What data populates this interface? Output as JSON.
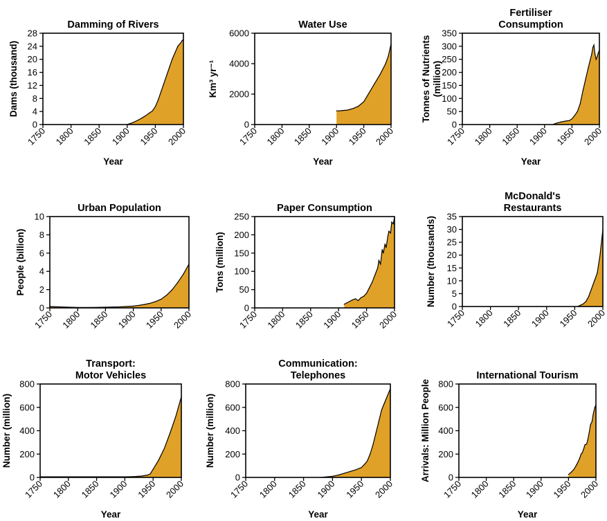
{
  "colors": {
    "fill": "#e0a128",
    "line": "#000000",
    "background": "#ffffff"
  },
  "chart_data": [
    {
      "type": "area",
      "title": [
        "Damming of Rivers"
      ],
      "xlabel": "Year",
      "ylabel": [
        "Dams (thousand)"
      ],
      "xlim": [
        1750,
        2000
      ],
      "ylim": [
        0,
        28
      ],
      "xticks": [
        "1750",
        "1800",
        "1850",
        "1900",
        "1950",
        "2000"
      ],
      "yticks": [
        "0",
        "4",
        "8",
        "12",
        "16",
        "20",
        "24",
        "28"
      ],
      "grid": false,
      "x": [
        1900,
        1910,
        1920,
        1930,
        1940,
        1945,
        1950,
        1955,
        1960,
        1965,
        1970,
        1975,
        1980,
        1985,
        1990,
        1995,
        1998,
        2000
      ],
      "values": [
        0,
        0.6,
        1.4,
        2.4,
        3.6,
        4.2,
        5.5,
        7.5,
        10,
        12.5,
        15,
        17.5,
        20,
        22,
        24,
        25,
        25.8,
        26
      ]
    },
    {
      "type": "area",
      "title": [
        "Water Use"
      ],
      "xlabel": "Year",
      "ylabel": [
        "Km³ yr⁻¹"
      ],
      "xlim": [
        1750,
        2000
      ],
      "ylim": [
        0,
        6000
      ],
      "xticks": [
        "1750",
        "1800",
        "1850",
        "1900",
        "1950",
        "2000"
      ],
      "yticks": [
        "0",
        "2000",
        "4000",
        "6000"
      ],
      "grid": false,
      "x": [
        1900,
        1905,
        1910,
        1920,
        1930,
        1940,
        1950,
        1960,
        1970,
        1980,
        1990,
        1995,
        2000
      ],
      "values": [
        900,
        900,
        920,
        950,
        1050,
        1200,
        1500,
        2100,
        2700,
        3300,
        4000,
        4500,
        5300
      ]
    },
    {
      "type": "area",
      "title": [
        "Fertiliser",
        "Consumption"
      ],
      "xlabel": "Year",
      "ylabel": [
        "Tonnes of Nutrients",
        "(million)"
      ],
      "xlim": [
        1750,
        2000
      ],
      "ylim": [
        0,
        350
      ],
      "xticks": [
        "1750",
        "1800",
        "1850",
        "1900",
        "1950",
        "2000"
      ],
      "yticks": [
        "0",
        "50",
        "100",
        "150",
        "200",
        "250",
        "300",
        "350"
      ],
      "grid": false,
      "x": [
        1915,
        1920,
        1925,
        1930,
        1935,
        1940,
        1945,
        1950,
        1955,
        1960,
        1965,
        1970,
        1975,
        1980,
        1983,
        1986,
        1988,
        1990,
        1992,
        1994,
        1996,
        1998,
        2000
      ],
      "values": [
        0,
        4,
        7,
        10,
        12,
        14,
        15,
        22,
        35,
        50,
        80,
        130,
        175,
        220,
        245,
        270,
        295,
        305,
        270,
        250,
        260,
        275,
        285
      ]
    },
    {
      "type": "area",
      "title": [
        "Urban Population"
      ],
      "xlabel": "",
      "ylabel": [
        "People (billion)"
      ],
      "xlim": [
        1750,
        2000
      ],
      "ylim": [
        0,
        10
      ],
      "xticks": [
        "1750",
        "1800",
        "1850",
        "1900",
        "1950",
        "2000"
      ],
      "yticks": [
        "0",
        "2",
        "4",
        "6",
        "8",
        "10"
      ],
      "grid": false,
      "x": [
        1750,
        1775,
        1800,
        1825,
        1850,
        1875,
        1900,
        1910,
        1920,
        1930,
        1940,
        1950,
        1960,
        1970,
        1980,
        1990,
        2000
      ],
      "values": [
        0.15,
        0.1,
        0.05,
        0.05,
        0.08,
        0.12,
        0.2,
        0.28,
        0.38,
        0.5,
        0.7,
        0.95,
        1.4,
        2.0,
        2.8,
        3.7,
        4.8
      ]
    },
    {
      "type": "area",
      "title": [
        "Paper Consumption"
      ],
      "xlabel": "",
      "ylabel": [
        "Tons (million)"
      ],
      "xlim": [
        1750,
        2000
      ],
      "ylim": [
        0,
        250
      ],
      "xticks": [
        "1750",
        "1800",
        "1850",
        "1900",
        "1950",
        "2000"
      ],
      "yticks": [
        "0",
        "50",
        "100",
        "150",
        "200",
        "250"
      ],
      "grid": false,
      "x": [
        1910,
        1915,
        1920,
        1925,
        1930,
        1935,
        1940,
        1945,
        1950,
        1955,
        1960,
        1965,
        1970,
        1972,
        1975,
        1978,
        1980,
        1983,
        1985,
        1988,
        1990,
        1993,
        1995,
        1998,
        2000
      ],
      "values": [
        10,
        14,
        18,
        22,
        25,
        20,
        28,
        32,
        40,
        55,
        70,
        90,
        110,
        130,
        120,
        160,
        150,
        175,
        165,
        195,
        210,
        205,
        235,
        230,
        250
      ]
    },
    {
      "type": "area",
      "title": [
        "McDonald's",
        "Restaurants"
      ],
      "xlabel": "",
      "ylabel": [
        "Number (thousands)"
      ],
      "xlim": [
        1750,
        2000
      ],
      "ylim": [
        0,
        35
      ],
      "xticks": [
        "1750",
        "1800",
        "1850",
        "1900",
        "1950",
        "2000"
      ],
      "yticks": [
        "0",
        "5",
        "10",
        "15",
        "20",
        "25",
        "30",
        "35"
      ],
      "grid": false,
      "x": [
        1955,
        1960,
        1965,
        1970,
        1975,
        1980,
        1985,
        1990,
        1995,
        2000
      ],
      "values": [
        0,
        0.5,
        1,
        2,
        4,
        7,
        10,
        13,
        20,
        30
      ]
    },
    {
      "type": "area",
      "title": [
        "Transport:",
        "Motor Vehicles"
      ],
      "xlabel": "Year",
      "ylabel": [
        "Number (million)"
      ],
      "xlim": [
        1750,
        2000
      ],
      "ylim": [
        0,
        800
      ],
      "xticks": [
        "1750",
        "1800",
        "1850",
        "1900",
        "1950",
        "2000"
      ],
      "yticks": [
        "0",
        "200",
        "400",
        "600",
        "800"
      ],
      "grid": false,
      "x": [
        1750,
        1800,
        1850,
        1900,
        1910,
        1920,
        1930,
        1940,
        1945,
        1950,
        1960,
        1970,
        1980,
        1990,
        2000
      ],
      "values": [
        5,
        5,
        5,
        5,
        6,
        8,
        12,
        20,
        30,
        70,
        150,
        250,
        380,
        520,
        690
      ]
    },
    {
      "type": "area",
      "title": [
        "Communication:",
        "Telephones"
      ],
      "xlabel": "Year",
      "ylabel": [
        "Number (million)"
      ],
      "xlim": [
        1750,
        2000
      ],
      "ylim": [
        0,
        800
      ],
      "xticks": [
        "1750",
        "1800",
        "1850",
        "1900",
        "1950",
        "2000"
      ],
      "yticks": [
        "0",
        "200",
        "400",
        "600",
        "800"
      ],
      "grid": false,
      "x": [
        1880,
        1900,
        1910,
        1920,
        1930,
        1940,
        1950,
        1955,
        1960,
        1965,
        1970,
        1975,
        1980,
        1985,
        1990,
        1995,
        2000
      ],
      "values": [
        0,
        10,
        20,
        35,
        50,
        65,
        85,
        110,
        140,
        200,
        280,
        380,
        480,
        580,
        640,
        700,
        760
      ]
    },
    {
      "type": "area",
      "title": [
        "International Tourism"
      ],
      "xlabel": "Year",
      "ylabel": [
        "Arrivals: Million People"
      ],
      "xlim": [
        1750,
        2000
      ],
      "ylim": [
        0,
        800
      ],
      "xticks": [
        "1750",
        "1800",
        "1850",
        "1900",
        "1950",
        "2000"
      ],
      "yticks": [
        "0",
        "200",
        "400",
        "600",
        "800"
      ],
      "grid": false,
      "x": [
        1950,
        1955,
        1960,
        1965,
        1970,
        1973,
        1975,
        1978,
        1980,
        1983,
        1985,
        1988,
        1990,
        1993,
        1995,
        1998,
        2000
      ],
      "values": [
        25,
        45,
        70,
        110,
        160,
        200,
        210,
        250,
        280,
        285,
        320,
        390,
        450,
        480,
        540,
        600,
        620
      ]
    }
  ]
}
